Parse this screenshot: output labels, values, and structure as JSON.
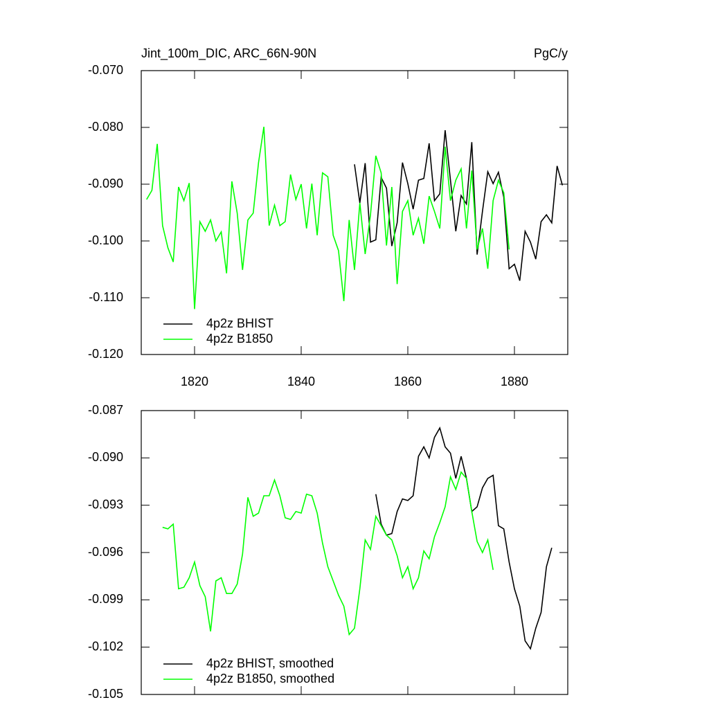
{
  "chart_data": [
    {
      "type": "line",
      "title": "Jint_100m_DIC, ARC_66N-90N",
      "units": "PgC/y",
      "xlim": [
        1810,
        1890
      ],
      "xticks": [
        1820,
        1840,
        1860,
        1880
      ],
      "ylim": [
        -0.12,
        -0.07
      ],
      "yticks": [
        {
          "value": -0.07,
          "label": "-0.070"
        },
        {
          "value": -0.08,
          "label": "-0.080"
        },
        {
          "value": -0.09,
          "label": "-0.090"
        },
        {
          "value": -0.1,
          "label": "-0.100"
        },
        {
          "value": -0.11,
          "label": "-0.110"
        },
        {
          "value": -0.12,
          "label": "-0.120"
        }
      ],
      "legend": "lower left",
      "series": [
        {
          "name": "4p2z BHIST",
          "color": "#000000",
          "x": [
            1850,
            1851,
            1852,
            1853,
            1854,
            1855,
            1856,
            1857,
            1858,
            1859,
            1860,
            1861,
            1862,
            1863,
            1864,
            1865,
            1866,
            1867,
            1868,
            1869,
            1870,
            1871,
            1872,
            1873,
            1874,
            1875,
            1876,
            1877,
            1878,
            1879,
            1880,
            1881,
            1882,
            1883,
            1884,
            1885,
            1886,
            1887,
            1888,
            1889
          ],
          "values": [
            -0.0865,
            -0.0933,
            -0.0863,
            -0.1002,
            -0.0998,
            -0.0888,
            -0.0907,
            -0.1009,
            -0.0968,
            -0.0862,
            -0.0899,
            -0.0944,
            -0.0893,
            -0.089,
            -0.0828,
            -0.0929,
            -0.0917,
            -0.0805,
            -0.0893,
            -0.0983,
            -0.092,
            -0.0935,
            -0.0826,
            -0.1024,
            -0.0948,
            -0.0878,
            -0.0899,
            -0.0879,
            -0.0923,
            -0.1049,
            -0.1041,
            -0.107,
            -0.0983,
            -0.1002,
            -0.1032,
            -0.0966,
            -0.0954,
            -0.0968,
            -0.0868,
            -0.0902
          ]
        },
        {
          "name": "4p2z B1850",
          "color": "#00ff00",
          "x": [
            1811,
            1812,
            1813,
            1814,
            1815,
            1816,
            1817,
            1818,
            1819,
            1820,
            1821,
            1822,
            1823,
            1824,
            1825,
            1826,
            1827,
            1828,
            1829,
            1830,
            1831,
            1832,
            1833,
            1834,
            1835,
            1836,
            1837,
            1838,
            1839,
            1840,
            1841,
            1842,
            1843,
            1844,
            1845,
            1846,
            1847,
            1848,
            1849,
            1850,
            1851,
            1852,
            1853,
            1854,
            1855,
            1856,
            1857,
            1858,
            1859,
            1860,
            1861,
            1862,
            1863,
            1864,
            1865,
            1866,
            1867,
            1868,
            1869,
            1870,
            1871,
            1872,
            1873,
            1874,
            1875,
            1876,
            1877,
            1878,
            1879
          ],
          "values": [
            -0.0927,
            -0.0911,
            -0.0829,
            -0.0973,
            -0.1012,
            -0.1037,
            -0.0905,
            -0.0929,
            -0.0898,
            -0.112,
            -0.0966,
            -0.0983,
            -0.0963,
            -0.1,
            -0.0984,
            -0.1057,
            -0.0895,
            -0.0951,
            -0.1051,
            -0.0963,
            -0.0951,
            -0.0862,
            -0.0799,
            -0.0973,
            -0.0937,
            -0.0973,
            -0.0966,
            -0.0883,
            -0.0927,
            -0.09,
            -0.0978,
            -0.0899,
            -0.099,
            -0.088,
            -0.0887,
            -0.099,
            -0.1017,
            -0.1106,
            -0.0963,
            -0.1051,
            -0.0933,
            -0.1023,
            -0.0954,
            -0.085,
            -0.088,
            -0.1008,
            -0.0905,
            -0.1076,
            -0.0948,
            -0.0929,
            -0.099,
            -0.096,
            -0.1005,
            -0.0921,
            -0.0948,
            -0.0978,
            -0.0834,
            -0.0929,
            -0.0893,
            -0.0873,
            -0.0978,
            -0.0876,
            -0.1015,
            -0.0978,
            -0.1049,
            -0.0929,
            -0.0893,
            -0.0915,
            -0.1015
          ]
        }
      ]
    },
    {
      "type": "line",
      "xlim": [
        1810,
        1890
      ],
      "xticks": [
        1820,
        1840,
        1860,
        1880
      ],
      "ylim": [
        -0.105,
        -0.087
      ],
      "yticks": [
        {
          "value": -0.087,
          "label": "-0.087"
        },
        {
          "value": -0.09,
          "label": "-0.090"
        },
        {
          "value": -0.093,
          "label": "-0.093"
        },
        {
          "value": -0.096,
          "label": "-0.096"
        },
        {
          "value": -0.099,
          "label": "-0.099"
        },
        {
          "value": -0.102,
          "label": "-0.102"
        },
        {
          "value": -0.105,
          "label": "-0.105"
        }
      ],
      "legend": "lower left",
      "series": [
        {
          "name": "4p2z BHIST, smoothed",
          "color": "#000000",
          "x": [
            1854,
            1855,
            1856,
            1857,
            1858,
            1859,
            1860,
            1861,
            1862,
            1863,
            1864,
            1865,
            1866,
            1867,
            1868,
            1869,
            1870,
            1871,
            1872,
            1873,
            1874,
            1875,
            1876,
            1877,
            1878,
            1879,
            1880,
            1881,
            1882,
            1883,
            1884,
            1885,
            1886,
            1887
          ],
          "values": [
            -0.0923,
            -0.0942,
            -0.0949,
            -0.0948,
            -0.0934,
            -0.0926,
            -0.0927,
            -0.0924,
            -0.0899,
            -0.0893,
            -0.09,
            -0.0887,
            -0.0881,
            -0.0893,
            -0.0897,
            -0.0913,
            -0.0899,
            -0.0913,
            -0.0934,
            -0.0931,
            -0.0919,
            -0.0913,
            -0.0911,
            -0.0943,
            -0.0945,
            -0.0966,
            -0.0983,
            -0.0994,
            -0.1016,
            -0.1021,
            -0.1008,
            -0.0998,
            -0.0969,
            -0.0957
          ]
        },
        {
          "name": "4p2z B1850, smoothed",
          "color": "#00ff00",
          "x": [
            1814,
            1815,
            1816,
            1817,
            1818,
            1819,
            1820,
            1821,
            1822,
            1823,
            1824,
            1825,
            1826,
            1827,
            1828,
            1829,
            1830,
            1831,
            1832,
            1833,
            1834,
            1835,
            1836,
            1837,
            1838,
            1839,
            1840,
            1841,
            1842,
            1843,
            1844,
            1845,
            1846,
            1847,
            1848,
            1849,
            1850,
            1851,
            1852,
            1853,
            1854,
            1855,
            1856,
            1857,
            1858,
            1859,
            1860,
            1861,
            1862,
            1863,
            1864,
            1865,
            1866,
            1867,
            1868,
            1869,
            1870,
            1871,
            1872,
            1873,
            1874,
            1875,
            1876
          ],
          "values": [
            -0.0944,
            -0.0945,
            -0.0942,
            -0.0983,
            -0.0982,
            -0.0976,
            -0.0966,
            -0.0981,
            -0.0988,
            -0.101,
            -0.0978,
            -0.0976,
            -0.0986,
            -0.0986,
            -0.098,
            -0.0961,
            -0.0925,
            -0.0937,
            -0.0935,
            -0.0924,
            -0.0924,
            -0.0914,
            -0.0924,
            -0.0938,
            -0.0939,
            -0.0934,
            -0.0935,
            -0.0923,
            -0.0924,
            -0.0935,
            -0.0954,
            -0.0969,
            -0.0978,
            -0.0987,
            -0.0994,
            -0.1012,
            -0.1008,
            -0.0983,
            -0.0952,
            -0.0958,
            -0.0937,
            -0.0943,
            -0.0949,
            -0.0952,
            -0.0962,
            -0.0976,
            -0.0969,
            -0.0983,
            -0.0976,
            -0.0959,
            -0.0964,
            -0.095,
            -0.0941,
            -0.0931,
            -0.0912,
            -0.092,
            -0.0909,
            -0.0913,
            -0.0934,
            -0.0953,
            -0.096,
            -0.0952,
            -0.0971
          ]
        }
      ]
    }
  ]
}
